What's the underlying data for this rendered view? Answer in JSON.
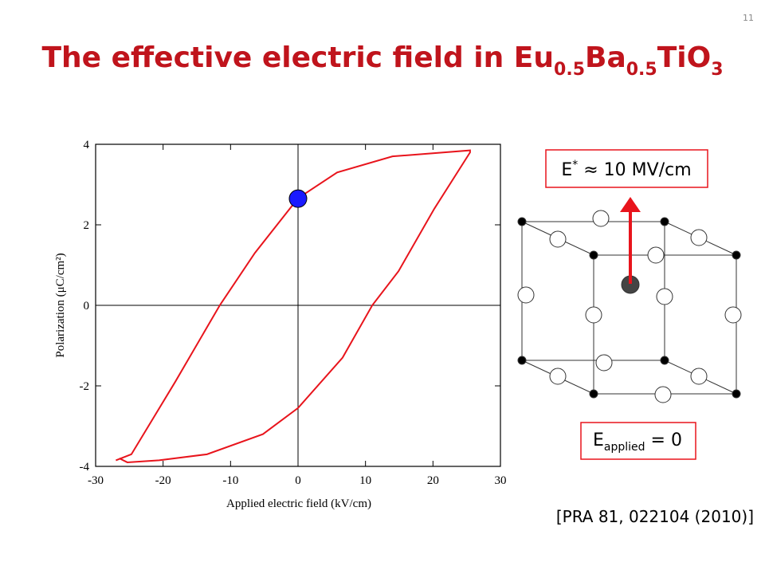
{
  "slide": {
    "page_number": "11",
    "title_parts": [
      "The effective electric field in Eu",
      "0.5",
      "Ba",
      "0.5",
      "TiO",
      "3"
    ],
    "field_box": {
      "main": "E",
      "sup": "*",
      "rest": " ≈ 10 MV/cm"
    },
    "applied_box": {
      "main": "E",
      "sub": "applied",
      "rest": " = 0"
    },
    "citation": "[PRA 81, 022104 (2010)]"
  },
  "chart_data": {
    "type": "line",
    "x_label": "Applied electric field (kV/cm)",
    "y_label": "Polarization (μC/cm²)",
    "xlim": [
      -30,
      30
    ],
    "ylim": [
      -4,
      4
    ],
    "xticks": [
      -30,
      -20,
      -10,
      0,
      10,
      20,
      30
    ],
    "yticks": [
      -4,
      -2,
      0,
      2,
      4
    ],
    "series": [
      {
        "color": "#e8141c",
        "x": [
          -27,
          -24.7,
          -18.2,
          -11.6,
          -6.4,
          0,
          5.8,
          14,
          25.5,
          25.5,
          20.2,
          14.9,
          11,
          6.6,
          0,
          -5.2,
          -13.5,
          -20.6,
          -25.3,
          -26.5
        ],
        "values": [
          -3.85,
          -3.7,
          -1.9,
          0,
          1.3,
          2.66,
          3.3,
          3.7,
          3.85,
          3.8,
          2.4,
          0.85,
          0,
          -1.3,
          -2.55,
          -3.2,
          -3.7,
          -3.85,
          -3.9,
          -3.8
        ]
      }
    ],
    "marker": {
      "x": 0,
      "y": 2.65,
      "color": "#1a1aff"
    }
  }
}
